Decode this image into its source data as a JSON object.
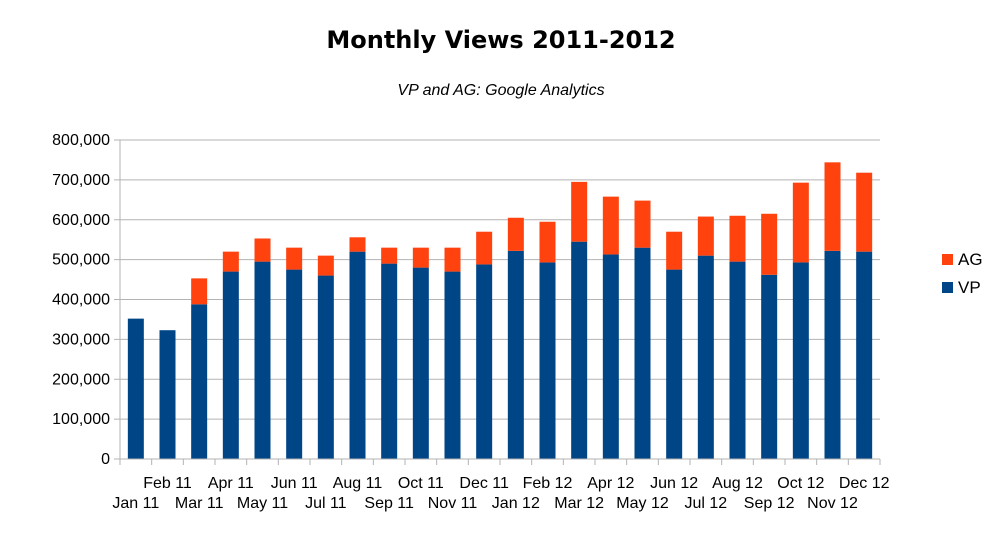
{
  "chart_data": {
    "type": "bar",
    "stacked": true,
    "title": "Monthly Views 2011-2012",
    "subtitle": "VP and AG: Google Analytics",
    "xlabel": "",
    "ylabel": "",
    "ylim": [
      0,
      800000
    ],
    "yticks": [
      "0",
      "100,000",
      "200,000",
      "300,000",
      "400,000",
      "500,000",
      "600,000",
      "700,000",
      "800,000"
    ],
    "grid": true,
    "legend": "right",
    "categories": [
      "Jan 11",
      "Feb 11",
      "Mar 11",
      "Apr 11",
      "May 11",
      "Jun 11",
      "Jul 11",
      "Aug 11",
      "Sep 11",
      "Oct 11",
      "Nov 11",
      "Dec 11",
      "Jan 12",
      "Feb 12",
      "Mar 12",
      "Apr 12",
      "May 12",
      "Jun 12",
      "Jul 12",
      "Aug 12",
      "Sep 12",
      "Oct 12",
      "Nov 12",
      "Dec 12"
    ],
    "series": [
      {
        "name": "VP",
        "color": "#004586",
        "values": [
          352000,
          323000,
          388000,
          470000,
          495000,
          475000,
          460000,
          520000,
          490000,
          480000,
          470000,
          488000,
          522000,
          493000,
          545000,
          513000,
          530000,
          475000,
          510000,
          495000,
          462000,
          493000,
          522000,
          520000
        ]
      },
      {
        "name": "AG",
        "color": "#ff420e",
        "values": [
          0,
          0,
          65000,
          50000,
          58000,
          55000,
          50000,
          36000,
          40000,
          50000,
          60000,
          82000,
          83000,
          102000,
          150000,
          145000,
          118000,
          95000,
          98000,
          115000,
          153000,
          200000,
          222000,
          198000
        ]
      }
    ]
  }
}
